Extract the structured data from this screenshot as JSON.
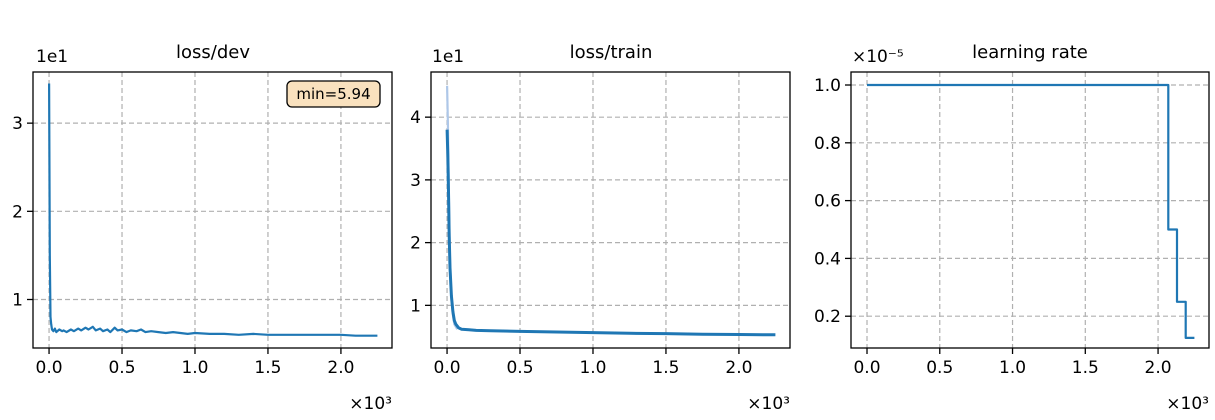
{
  "chart_data": [
    {
      "type": "line",
      "title": "loss/dev",
      "y_offset_label": "1e1",
      "x_offset_label": "×10³",
      "xlim": [
        -0.11,
        2.35
      ],
      "ylim": [
        0.45,
        3.58
      ],
      "xticks": [
        0.0,
        0.5,
        1.0,
        1.5,
        2.0
      ],
      "xtick_labels": [
        "0.0",
        "0.5",
        "1.0",
        "1.5",
        "2.0"
      ],
      "yticks": [
        1,
        2,
        3
      ],
      "ytick_labels": [
        "1",
        "2",
        "3"
      ],
      "grid": true,
      "annotation": "min=5.94",
      "annotation_position": "top-right",
      "series": [
        {
          "color": "#1f77b4",
          "x": [
            0.0,
            0.005,
            0.01,
            0.015,
            0.02,
            0.03,
            0.04,
            0.05,
            0.07,
            0.09,
            0.1,
            0.12,
            0.15,
            0.17,
            0.2,
            0.22,
            0.25,
            0.27,
            0.3,
            0.32,
            0.35,
            0.37,
            0.4,
            0.42,
            0.45,
            0.47,
            0.5,
            0.53,
            0.56,
            0.6,
            0.63,
            0.66,
            0.7,
            0.75,
            0.8,
            0.85,
            0.9,
            0.95,
            1.0,
            1.1,
            1.2,
            1.3,
            1.4,
            1.5,
            1.6,
            1.7,
            1.8,
            1.9,
            2.0,
            2.1,
            2.25
          ],
          "y": [
            3.45,
            1.5,
            0.8,
            0.72,
            0.66,
            0.64,
            0.67,
            0.63,
            0.66,
            0.64,
            0.65,
            0.63,
            0.66,
            0.64,
            0.67,
            0.65,
            0.68,
            0.66,
            0.69,
            0.65,
            0.67,
            0.64,
            0.66,
            0.63,
            0.68,
            0.65,
            0.66,
            0.63,
            0.65,
            0.64,
            0.66,
            0.63,
            0.64,
            0.63,
            0.62,
            0.63,
            0.62,
            0.61,
            0.62,
            0.61,
            0.61,
            0.6,
            0.61,
            0.6,
            0.6,
            0.6,
            0.6,
            0.6,
            0.6,
            0.59,
            0.59
          ]
        }
      ]
    },
    {
      "type": "line",
      "title": "loss/train",
      "y_offset_label": "1e1",
      "x_offset_label": "×10³",
      "xlim": [
        -0.11,
        2.35
      ],
      "ylim": [
        0.32,
        4.72
      ],
      "xticks": [
        0.0,
        0.5,
        1.0,
        1.5,
        2.0
      ],
      "xtick_labels": [
        "0.0",
        "0.5",
        "1.0",
        "1.5",
        "2.0"
      ],
      "yticks": [
        1,
        2,
        3,
        4
      ],
      "ytick_labels": [
        "1",
        "2",
        "3",
        "4"
      ],
      "grid": true,
      "series": [
        {
          "color": "#aec7e8",
          "x": [
            0.0,
            0.003,
            0.006,
            0.01,
            0.015,
            0.02,
            0.03,
            0.04,
            0.05,
            0.07
          ],
          "y": [
            4.5,
            4.2,
            3.9,
            3.2,
            2.4,
            1.7,
            1.1,
            0.85,
            0.7,
            0.62
          ]
        },
        {
          "color": "#1f77b4",
          "x": [
            0.0,
            0.005,
            0.01,
            0.015,
            0.02,
            0.03,
            0.04,
            0.05,
            0.06,
            0.08,
            0.1,
            0.15,
            0.2,
            0.3,
            0.5,
            0.75,
            1.0,
            1.25,
            1.5,
            1.75,
            2.0,
            2.25
          ],
          "y": [
            3.8,
            3.4,
            2.8,
            2.1,
            1.6,
            1.15,
            0.9,
            0.76,
            0.7,
            0.64,
            0.62,
            0.61,
            0.6,
            0.595,
            0.585,
            0.575,
            0.565,
            0.555,
            0.55,
            0.54,
            0.535,
            0.53
          ]
        }
      ]
    },
    {
      "type": "line",
      "title": "learning rate",
      "y_offset_label": "×10⁻⁵",
      "x_offset_label": "×10³",
      "xlim": [
        -0.11,
        2.35
      ],
      "ylim": [
        0.09,
        1.045
      ],
      "xticks": [
        0.0,
        0.5,
        1.0,
        1.5,
        2.0
      ],
      "xtick_labels": [
        "0.0",
        "0.5",
        "1.0",
        "1.5",
        "2.0"
      ],
      "yticks": [
        0.2,
        0.4,
        0.6,
        0.8,
        1.0
      ],
      "ytick_labels": [
        "0.2",
        "0.4",
        "0.6",
        "0.8",
        "1.0"
      ],
      "grid": true,
      "series": [
        {
          "color": "#1f77b4",
          "x": [
            0.0,
            2.07,
            2.07,
            2.13,
            2.13,
            2.19,
            2.19,
            2.25
          ],
          "y": [
            1.0,
            1.0,
            0.5,
            0.5,
            0.25,
            0.25,
            0.125,
            0.125
          ]
        }
      ]
    }
  ]
}
